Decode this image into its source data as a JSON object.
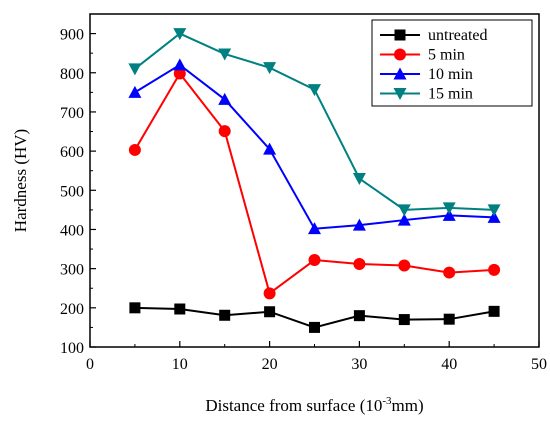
{
  "chart_data": {
    "type": "line",
    "title": "",
    "xlabel_main": "Distance from surface (10",
    "xlabel_sup": "-3",
    "xlabel_end": "mm)",
    "ylabel": "Hardness (HV)",
    "xlim": [
      0,
      50
    ],
    "ylim": [
      100,
      950
    ],
    "x_ticks": [
      "0",
      "10",
      "20",
      "30",
      "40",
      "50"
    ],
    "y_ticks": [
      "100",
      "200",
      "300",
      "400",
      "500",
      "600",
      "700",
      "800",
      "900"
    ],
    "legend_position": "top-right",
    "grid": false,
    "x": [
      5,
      10,
      15,
      20,
      25,
      30,
      35,
      40,
      45
    ],
    "series": [
      {
        "name": "untreated",
        "color": "#000000",
        "marker": "square",
        "values": [
          200,
          197,
          181,
          190,
          150,
          180,
          170,
          171,
          191
        ]
      },
      {
        "name": "5 min",
        "color": "#ff0000",
        "marker": "circle",
        "values": [
          603,
          798,
          651,
          237,
          322,
          312,
          308,
          290,
          297
        ]
      },
      {
        "name": "10 min",
        "color": "#0000ff",
        "marker": "triangle-up",
        "values": [
          750,
          820,
          732,
          605,
          402,
          411,
          424,
          436,
          431
        ]
      },
      {
        "name": "15 min",
        "color": "#008080",
        "marker": "triangle-down",
        "values": [
          810,
          900,
          848,
          813,
          757,
          530,
          450,
          455,
          450
        ]
      }
    ]
  }
}
